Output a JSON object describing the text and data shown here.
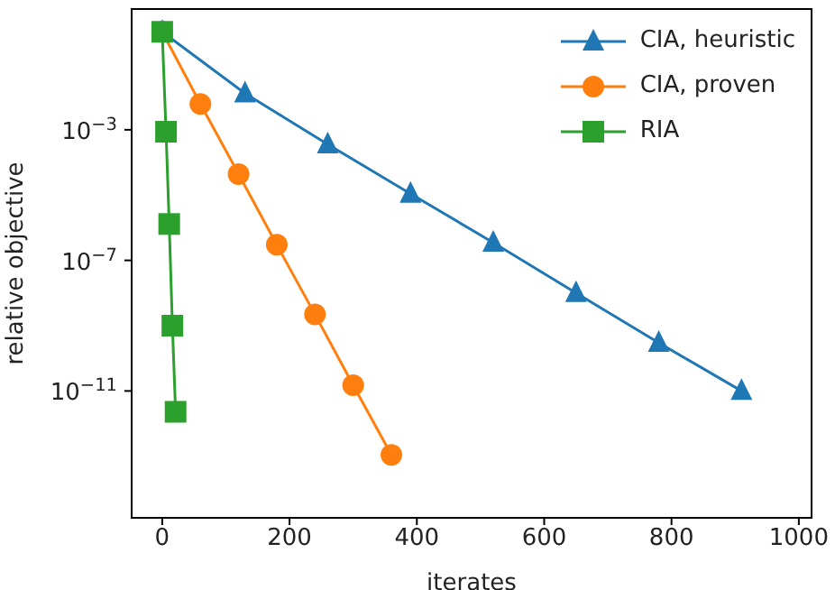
{
  "chart_data": {
    "type": "line",
    "xlabel": "iterates",
    "ylabel": "relative objective",
    "log": "y",
    "legend": "top right",
    "line_style": "solid",
    "xlim": [
      -48,
      1020
    ],
    "xticks": [
      0,
      200,
      400,
      600,
      800,
      1000
    ],
    "ylim": [
      1.3e-15,
      5
    ],
    "yticks": [
      {
        "value": 0.001,
        "label": "10$^{−3}$"
      },
      {
        "value": 1e-07,
        "label": "10$^{−7}$"
      },
      {
        "value": 1e-11,
        "label": "10$^{−11}$"
      }
    ],
    "series": [
      {
        "name": "CIA, heuristic",
        "color": "#1f77b4",
        "marker": "triangle",
        "x": [
          0,
          130,
          260,
          390,
          520,
          650,
          780,
          910
        ],
        "values": [
          1,
          0.013,
          0.00036,
          1.1e-05,
          3.5e-07,
          1e-08,
          3e-10,
          1e-11
        ]
      },
      {
        "name": "CIA, proven",
        "color": "#ff7f0e",
        "marker": "circle",
        "x": [
          0,
          60,
          120,
          180,
          240,
          300,
          360
        ],
        "values": [
          1,
          0.0062,
          4.4e-05,
          3e-07,
          2.2e-09,
          1.5e-11,
          1.1e-13
        ]
      },
      {
        "name": "RIA",
        "color": "#2ca02c",
        "marker": "square",
        "x": [
          0,
          6,
          11,
          16,
          21
        ],
        "values": [
          1,
          0.00087,
          1.3e-06,
          1e-09,
          2.3e-12
        ]
      }
    ]
  }
}
